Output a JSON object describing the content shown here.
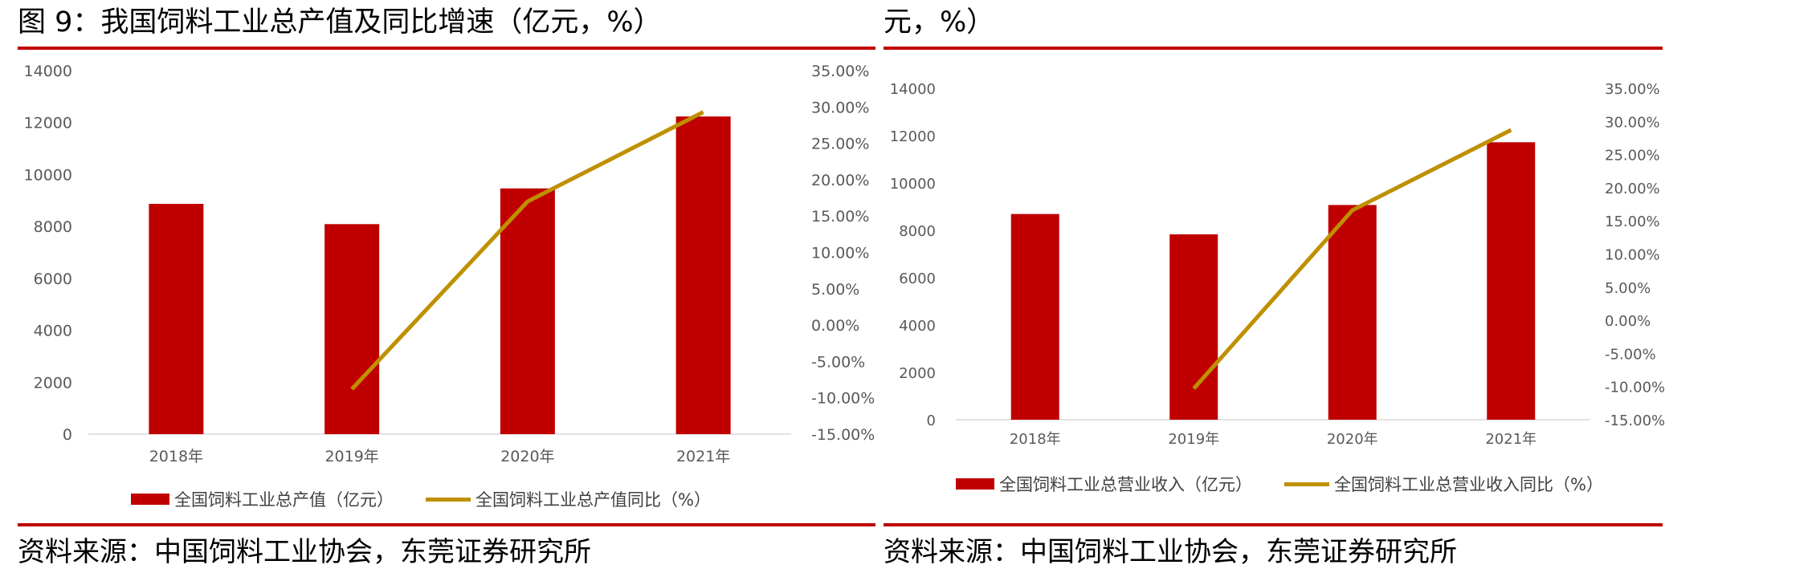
{
  "left": {
    "title": "图 9：我国饲料工业总产值及同比增速（亿元，%）",
    "source": "资料来源：中国饲料工业协会，东莞证券研究所"
  },
  "right": {
    "title": "元，%）",
    "source": "资料来源：中国饲料工业协会，东莞证券研究所"
  },
  "colors": {
    "bar": "#c00000",
    "line": "#bf9000",
    "rule": "#c00000",
    "axis": "#d9d9d9",
    "text": "#595959"
  },
  "chart_data": [
    {
      "type": "bar",
      "categories": [
        "2018年",
        "2019年",
        "2020年",
        "2021年"
      ],
      "series": [
        {
          "name": "全国饲料工业总产值（亿元）",
          "kind": "bar",
          "axis": "left",
          "values": [
            8870,
            8088,
            9464,
            12234
          ]
        },
        {
          "name": "全国饲料工业总产值同比（%）",
          "kind": "line",
          "axis": "right",
          "values": [
            null,
            -8.8,
            17.0,
            29.3
          ]
        }
      ],
      "ylim": [
        0,
        14000
      ],
      "yticks": [
        "0",
        "2000",
        "4000",
        "6000",
        "8000",
        "10000",
        "12000",
        "14000"
      ],
      "y2lim": [
        -15,
        35
      ],
      "y2ticks": [
        "-15.00%",
        "-10.00%",
        "-5.00%",
        "0.00%",
        "5.00%",
        "10.00%",
        "15.00%",
        "20.00%",
        "25.00%",
        "30.00%",
        "35.00%"
      ],
      "legend": "bottom"
    },
    {
      "type": "bar",
      "categories": [
        "2018年",
        "2019年",
        "2020年",
        "2021年"
      ],
      "series": [
        {
          "name": "全国饲料工业总营业收入（亿元）",
          "kind": "bar",
          "axis": "left",
          "values": [
            8690,
            7830,
            9070,
            11720
          ]
        },
        {
          "name": "全国饲料工业总营业收入同比（%）",
          "kind": "line",
          "axis": "right",
          "values": [
            null,
            -10.3,
            16.6,
            28.7
          ]
        }
      ],
      "ylim": [
        0,
        14000
      ],
      "yticks": [
        "0",
        "2000",
        "4000",
        "6000",
        "8000",
        "10000",
        "12000",
        "14000"
      ],
      "y2lim": [
        -15,
        35
      ],
      "y2ticks": [
        "-15.00%",
        "-10.00%",
        "-5.00%",
        "0.00%",
        "5.00%",
        "10.00%",
        "15.00%",
        "20.00%",
        "25.00%",
        "30.00%",
        "35.00%"
      ],
      "legend": "bottom"
    }
  ]
}
